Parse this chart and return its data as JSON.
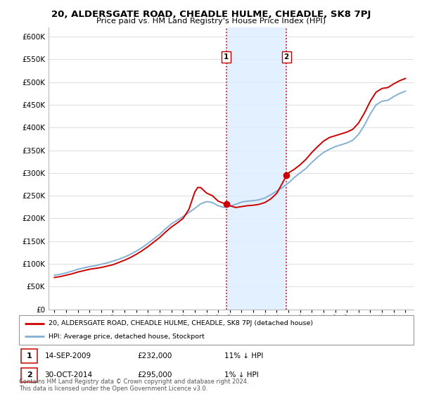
{
  "title": "20, ALDERSGATE ROAD, CHEADLE HULME, CHEADLE, SK8 7PJ",
  "subtitle": "Price paid vs. HM Land Registry's House Price Index (HPI)",
  "ylim": [
    0,
    620000
  ],
  "yticks": [
    0,
    50000,
    100000,
    150000,
    200000,
    250000,
    300000,
    350000,
    400000,
    450000,
    500000,
    550000,
    600000
  ],
  "grid_color": "#e0e0e0",
  "legend_label_red": "20, ALDERSGATE ROAD, CHEADLE HULME, CHEADLE, SK8 7PJ (detached house)",
  "legend_label_blue": "HPI: Average price, detached house, Stockport",
  "transaction1_date": "14-SEP-2009",
  "transaction1_price": "£232,000",
  "transaction1_hpi": "11% ↓ HPI",
  "transaction2_date": "30-OCT-2014",
  "transaction2_price": "£295,000",
  "transaction2_hpi": "1% ↓ HPI",
  "footer": "Contains HM Land Registry data © Crown copyright and database right 2024.\nThis data is licensed under the Open Government Licence v3.0.",
  "hpi_x": [
    1995.0,
    1995.5,
    1996.0,
    1996.5,
    1997.0,
    1997.5,
    1998.0,
    1998.5,
    1999.0,
    1999.5,
    2000.0,
    2000.5,
    2001.0,
    2001.5,
    2002.0,
    2002.5,
    2003.0,
    2003.5,
    2004.0,
    2004.5,
    2005.0,
    2005.5,
    2006.0,
    2006.5,
    2007.0,
    2007.5,
    2008.0,
    2008.5,
    2009.0,
    2009.5,
    2010.0,
    2010.5,
    2011.0,
    2011.5,
    2012.0,
    2012.5,
    2013.0,
    2013.5,
    2014.0,
    2014.5,
    2015.0,
    2015.5,
    2016.0,
    2016.5,
    2017.0,
    2017.5,
    2018.0,
    2018.5,
    2019.0,
    2019.5,
    2020.0,
    2020.5,
    2021.0,
    2021.5,
    2022.0,
    2022.5,
    2023.0,
    2023.5,
    2024.0,
    2024.5,
    2025.0
  ],
  "hpi_y": [
    75000,
    77000,
    80000,
    84000,
    88000,
    91000,
    94000,
    96000,
    99000,
    102000,
    106000,
    110000,
    115000,
    121000,
    128000,
    136000,
    145000,
    155000,
    165000,
    177000,
    188000,
    196000,
    204000,
    213000,
    222000,
    232000,
    237000,
    235000,
    228000,
    224000,
    227000,
    231000,
    236000,
    238000,
    239000,
    241000,
    245000,
    252000,
    260000,
    268000,
    278000,
    290000,
    300000,
    310000,
    323000,
    335000,
    345000,
    352000,
    358000,
    362000,
    366000,
    372000,
    385000,
    405000,
    430000,
    450000,
    458000,
    460000,
    468000,
    475000,
    480000
  ],
  "price_x": [
    1995.0,
    1995.5,
    1996.0,
    1996.5,
    1997.0,
    1997.5,
    1998.0,
    1998.5,
    1999.0,
    1999.5,
    2000.0,
    2000.5,
    2001.0,
    2001.5,
    2002.0,
    2002.5,
    2003.0,
    2003.5,
    2004.0,
    2004.5,
    2005.0,
    2005.5,
    2006.0,
    2006.5,
    2007.0,
    2007.25,
    2007.5,
    2007.75,
    2008.0,
    2008.5,
    2009.0,
    2009.5,
    2009.7,
    2010.0,
    2010.5,
    2011.0,
    2011.5,
    2012.0,
    2012.5,
    2013.0,
    2013.5,
    2014.0,
    2014.5,
    2014.83,
    2015.0,
    2015.5,
    2016.0,
    2016.5,
    2017.0,
    2017.5,
    2018.0,
    2018.5,
    2019.0,
    2019.5,
    2020.0,
    2020.5,
    2021.0,
    2021.5,
    2022.0,
    2022.5,
    2023.0,
    2023.5,
    2024.0,
    2024.5,
    2025.0
  ],
  "price_y": [
    70000,
    72000,
    75000,
    78000,
    82000,
    85000,
    88000,
    90000,
    92000,
    95000,
    98000,
    103000,
    108000,
    114000,
    121000,
    129000,
    138000,
    148000,
    158000,
    170000,
    181000,
    190000,
    200000,
    220000,
    258000,
    268000,
    268000,
    262000,
    256000,
    250000,
    238000,
    233000,
    232000,
    228000,
    224000,
    226000,
    228000,
    229000,
    231000,
    235000,
    243000,
    255000,
    278000,
    295000,
    300000,
    308000,
    318000,
    330000,
    345000,
    358000,
    370000,
    378000,
    382000,
    386000,
    390000,
    396000,
    410000,
    432000,
    458000,
    478000,
    486000,
    488000,
    496000,
    503000,
    508000
  ],
  "transaction1_x": 2009.7,
  "transaction1_y": 232000,
  "transaction2_x": 2014.83,
  "transaction2_y": 295000,
  "shade_start": 2009.7,
  "shade_end": 2014.83,
  "red_color": "#cc0000",
  "blue_color": "#85afd4",
  "shade_color": "#ddeeff",
  "vline_color": "#cc0000",
  "xlim_left": 1994.5,
  "xlim_right": 2025.7
}
